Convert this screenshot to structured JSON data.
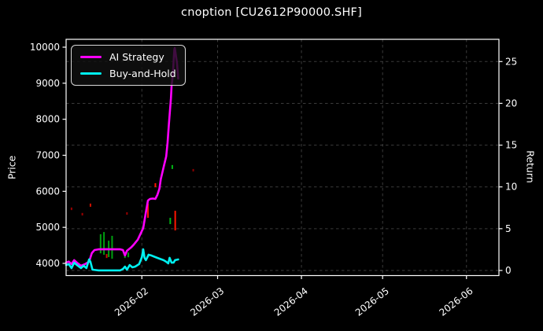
{
  "window": {
    "title": "cnoption [CU2612P90000.SHF]"
  },
  "figure": {
    "background": "#000000",
    "text_color": "#ffffff",
    "grid_style": "dashed"
  },
  "chart_data": {
    "type": "line",
    "title": "cnoption [CU2612P90000.SHF]",
    "xlabel": "",
    "ylabel_left": "Price",
    "ylabel_right": "Return",
    "legend_position": "upper left",
    "x_ticks": [
      "2026-02",
      "2026-03",
      "2026-04",
      "2026-05",
      "2026-06"
    ],
    "x_range": [
      "2026-01-04",
      "2026-06-13"
    ],
    "y_left": {
      "ticks": [
        4000,
        5000,
        6000,
        7000,
        8000,
        9000,
        10000
      ],
      "range": [
        3660,
        10220
      ]
    },
    "y_right": {
      "ticks": [
        0,
        5,
        10,
        15,
        20,
        25
      ],
      "range": [
        -0.6,
        27.7
      ]
    },
    "series": [
      {
        "name": "AI Strategy",
        "color": "#ff00ff",
        "axis": "left",
        "points": [
          [
            "2026-01-04",
            4020
          ],
          [
            "2026-01-05",
            4050
          ],
          [
            "2026-01-06",
            3980
          ],
          [
            "2026-01-07",
            4090
          ],
          [
            "2026-01-08",
            4020
          ],
          [
            "2026-01-09T12:00",
            3935
          ],
          [
            "2026-01-11",
            3980
          ],
          [
            "2026-01-12T12:00",
            4045
          ],
          [
            "2026-01-13T12:00",
            4285
          ],
          [
            "2026-01-14T12:00",
            4370
          ],
          [
            "2026-01-16",
            4390
          ],
          [
            "2026-01-19",
            4395
          ],
          [
            "2026-01-22",
            4390
          ],
          [
            "2026-01-24",
            4390
          ],
          [
            "2026-01-25",
            4370
          ],
          [
            "2026-01-25T18:00",
            4220
          ],
          [
            "2026-01-26T12:00",
            4350
          ],
          [
            "2026-01-28",
            4440
          ],
          [
            "2026-01-29",
            4520
          ],
          [
            "2026-01-30T12:00",
            4660
          ],
          [
            "2026-02-01T12:00",
            4980
          ],
          [
            "2026-02-02T12:00",
            5420
          ],
          [
            "2026-02-03T06:00",
            5745
          ],
          [
            "2026-02-04",
            5790
          ],
          [
            "2026-02-05",
            5800
          ],
          [
            "2026-02-06",
            5790
          ],
          [
            "2026-02-06T18:00",
            5900
          ],
          [
            "2026-02-07T12:00",
            6075
          ],
          [
            "2026-02-08",
            6335
          ],
          [
            "2026-02-09",
            6660
          ],
          [
            "2026-02-10",
            6970
          ],
          [
            "2026-02-10T12:00",
            7340
          ],
          [
            "2026-02-11",
            7860
          ],
          [
            "2026-02-11T18:00",
            8580
          ],
          [
            "2026-02-12",
            8950
          ],
          [
            "2026-02-12T12:00",
            9240
          ],
          [
            "2026-02-12T18:00",
            9610
          ],
          [
            "2026-02-13",
            9930
          ],
          [
            "2026-02-13T04:00",
            9975
          ],
          [
            "2026-02-13T12:00",
            9820
          ],
          [
            "2026-02-14",
            9560
          ],
          [
            "2026-02-14T10:00",
            9130
          ]
        ]
      },
      {
        "name": "Buy-and-Hold",
        "color": "#00f0f0",
        "axis": "left",
        "points": [
          [
            "2026-01-04",
            3955
          ],
          [
            "2026-01-05",
            3980
          ],
          [
            "2026-01-06",
            3870
          ],
          [
            "2026-01-07",
            4020
          ],
          [
            "2026-01-08",
            3955
          ],
          [
            "2026-01-09T12:00",
            3870
          ],
          [
            "2026-01-10T12:00",
            3935
          ],
          [
            "2026-01-11T12:00",
            3870
          ],
          [
            "2026-01-12T12:00",
            4110
          ],
          [
            "2026-01-13",
            4045
          ],
          [
            "2026-01-13T18:00",
            3825
          ],
          [
            "2026-01-16",
            3805
          ],
          [
            "2026-01-19",
            3805
          ],
          [
            "2026-01-22",
            3805
          ],
          [
            "2026-01-24",
            3805
          ],
          [
            "2026-01-25",
            3845
          ],
          [
            "2026-01-25T18:00",
            3910
          ],
          [
            "2026-01-26T12:00",
            3825
          ],
          [
            "2026-01-27T12:00",
            3955
          ],
          [
            "2026-01-28T12:00",
            3890
          ],
          [
            "2026-01-29T12:00",
            3910
          ],
          [
            "2026-01-31",
            3980
          ],
          [
            "2026-02-01",
            4175
          ],
          [
            "2026-02-01T12:00",
            4390
          ],
          [
            "2026-02-02",
            4150
          ],
          [
            "2026-02-02T12:00",
            4090
          ],
          [
            "2026-02-03T12:00",
            4240
          ],
          [
            "2026-02-04T12:00",
            4220
          ],
          [
            "2026-02-06",
            4175
          ],
          [
            "2026-02-07T12:00",
            4130
          ],
          [
            "2026-02-09",
            4090
          ],
          [
            "2026-02-10",
            4045
          ],
          [
            "2026-02-10T18:00",
            4000
          ],
          [
            "2026-02-11T06:00",
            4155
          ],
          [
            "2026-02-12",
            4020
          ],
          [
            "2026-02-12T18:00",
            4025
          ],
          [
            "2026-02-13T06:00",
            4090
          ],
          [
            "2026-02-14T10:00",
            4110
          ]
        ]
      }
    ],
    "wicks": [
      {
        "date": "2026-01-06",
        "high": 5550,
        "low": 5480,
        "color": "#990000"
      },
      {
        "date": "2026-01-10",
        "high": 5400,
        "low": 5330,
        "color": "#990000"
      },
      {
        "date": "2026-01-13",
        "high": 5660,
        "low": 5570,
        "color": "#cc1100"
      },
      {
        "date": "2026-01-16T18:00",
        "high": 4810,
        "low": 4280,
        "color": "#00a010"
      },
      {
        "date": "2026-01-18",
        "high": 4870,
        "low": 4240,
        "color": "#00a010"
      },
      {
        "date": "2026-01-19",
        "high": 4260,
        "low": 4150,
        "color": "#cc1100"
      },
      {
        "date": "2026-01-19T18:00",
        "high": 4630,
        "low": 4175,
        "color": "#00a010"
      },
      {
        "date": "2026-01-21",
        "high": 4765,
        "low": 4130,
        "color": "#00a010"
      },
      {
        "date": "2026-01-25T18:00",
        "high": 4285,
        "low": 4150,
        "color": "#00a010"
      },
      {
        "date": "2026-01-26T12:00",
        "high": 5420,
        "low": 5350,
        "color": "#990000"
      },
      {
        "date": "2026-01-27",
        "high": 4300,
        "low": 4170,
        "color": "#00a010"
      },
      {
        "date": "2026-02-03T06:00",
        "high": 5660,
        "low": 5265,
        "color": "#ff1500"
      },
      {
        "date": "2026-02-06",
        "high": 6225,
        "low": 6115,
        "color": "#ff1500"
      },
      {
        "date": "2026-02-11T12:00",
        "high": 5265,
        "low": 5090,
        "color": "#00b414"
      },
      {
        "date": "2026-02-12T06:00",
        "high": 6730,
        "low": 6620,
        "color": "#00b414"
      },
      {
        "date": "2026-02-13T08:00",
        "high": 5460,
        "low": 4915,
        "color": "#ff1500"
      },
      {
        "date": "2026-02-20",
        "high": 6620,
        "low": 6550,
        "color": "#8b0000"
      }
    ]
  }
}
